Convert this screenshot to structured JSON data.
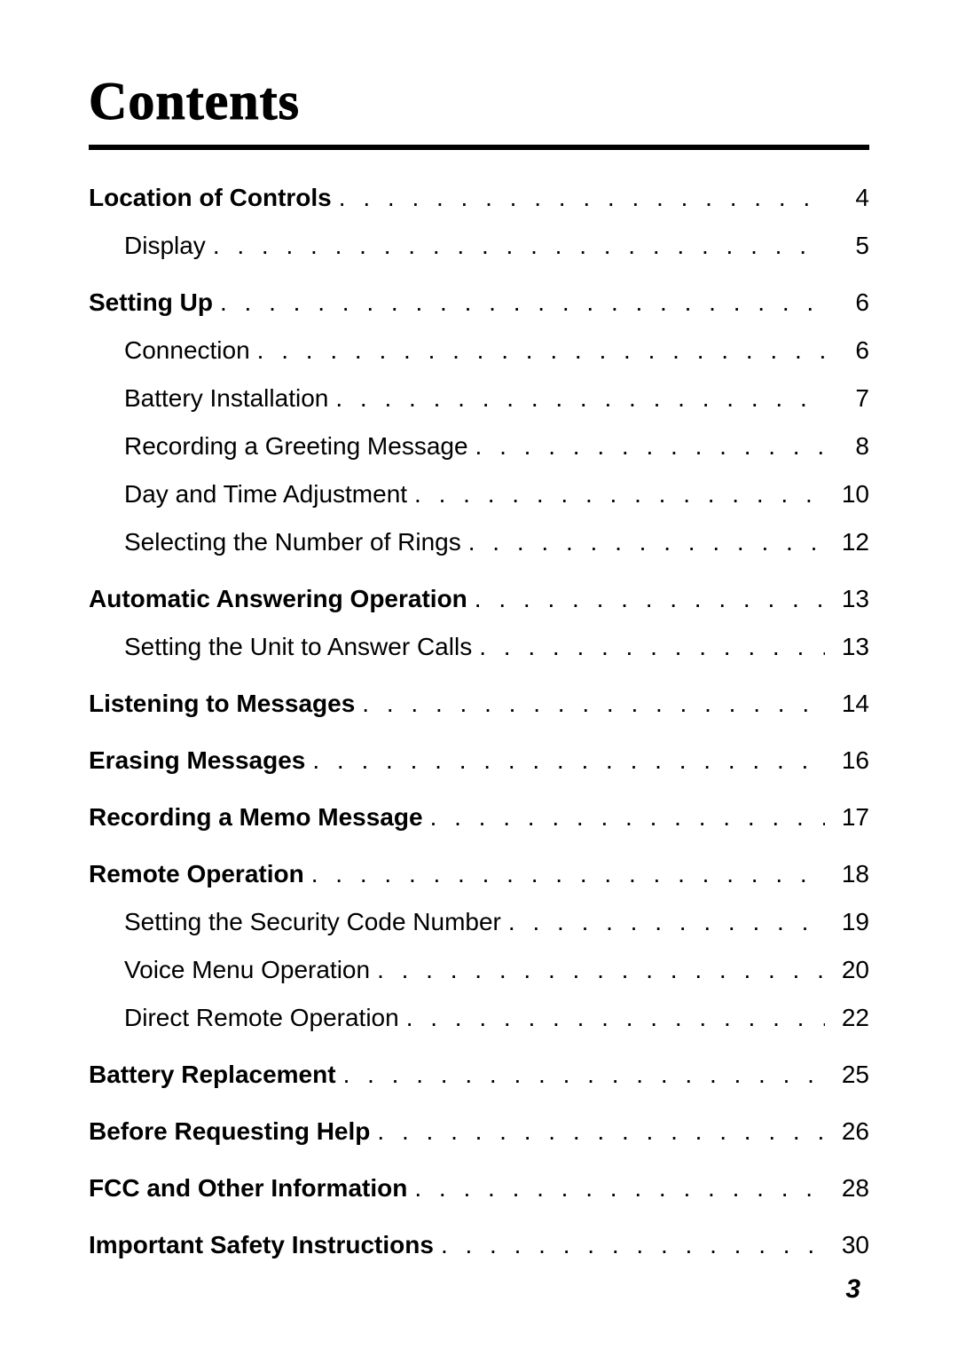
{
  "title": "Contents",
  "leader_dots": ". . . . . . . . . . . . . . . . . . . . . . . . . . . . . . . . . . . . . . . . . . . . . . . . . . . . . . . . . . . . . . . . . . . . . . . . . . . . . . . . . . . . . . . . . . . . . . . . . . . .",
  "entries": [
    {
      "label": "Location of Controls",
      "page": "4",
      "bold": true,
      "sub": false,
      "section": false
    },
    {
      "label": "Display",
      "page": "5",
      "bold": false,
      "sub": true,
      "section": false
    },
    {
      "label": "Setting Up",
      "page": "6",
      "bold": true,
      "sub": false,
      "section": true
    },
    {
      "label": "Connection",
      "page": "6",
      "bold": false,
      "sub": true,
      "section": false
    },
    {
      "label": "Battery Installation",
      "page": "7",
      "bold": false,
      "sub": true,
      "section": false
    },
    {
      "label": "Recording a Greeting Message",
      "page": "8",
      "bold": false,
      "sub": true,
      "section": false
    },
    {
      "label": "Day and Time Adjustment",
      "page": "10",
      "bold": false,
      "sub": true,
      "section": false
    },
    {
      "label": "Selecting the Number of Rings",
      "page": "12",
      "bold": false,
      "sub": true,
      "section": false
    },
    {
      "label": "Automatic Answering Operation",
      "page": "13",
      "bold": true,
      "sub": false,
      "section": true
    },
    {
      "label": "Setting the Unit to Answer Calls",
      "page": "13",
      "bold": false,
      "sub": true,
      "section": false
    },
    {
      "label": "Listening to Messages",
      "page": "14",
      "bold": true,
      "sub": false,
      "section": true
    },
    {
      "label": "Erasing Messages",
      "page": "16",
      "bold": true,
      "sub": false,
      "section": true
    },
    {
      "label": "Recording a Memo Message",
      "page": "17",
      "bold": true,
      "sub": false,
      "section": true
    },
    {
      "label": "Remote Operation",
      "page": "18",
      "bold": true,
      "sub": false,
      "section": true
    },
    {
      "label": "Setting the Security Code Number",
      "page": "19",
      "bold": false,
      "sub": true,
      "section": false
    },
    {
      "label": "Voice Menu Operation",
      "page": "20",
      "bold": false,
      "sub": true,
      "section": false
    },
    {
      "label": "Direct Remote Operation",
      "page": "22",
      "bold": false,
      "sub": true,
      "section": false
    },
    {
      "label": "Battery Replacement",
      "page": "25",
      "bold": true,
      "sub": false,
      "section": true
    },
    {
      "label": "Before Requesting Help",
      "page": "26",
      "bold": true,
      "sub": false,
      "section": true
    },
    {
      "label": "FCC and Other Information",
      "page": "28",
      "bold": true,
      "sub": false,
      "section": true
    },
    {
      "label": "Important Safety Instructions",
      "page": "30",
      "bold": true,
      "sub": false,
      "section": true
    }
  ],
  "page_number": "3"
}
